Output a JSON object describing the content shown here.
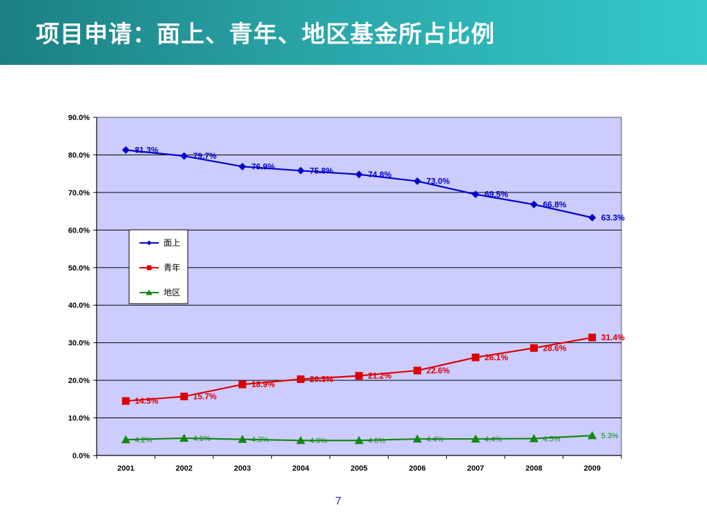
{
  "slide": {
    "title": "项目申请：面上、青年、地区基金所占比例",
    "page_number": "7"
  },
  "chart_data": {
    "type": "line",
    "title": "",
    "xlabel": "",
    "ylabel": "",
    "categories": [
      "2001",
      "2002",
      "2003",
      "2004",
      "2005",
      "2006",
      "2007",
      "2008",
      "2009"
    ],
    "ylim": [
      0,
      90
    ],
    "yticks": [
      "0.0%",
      "10.0%",
      "20.0%",
      "30.0%",
      "40.0%",
      "50.0%",
      "60.0%",
      "70.0%",
      "80.0%",
      "90.0%"
    ],
    "grid": true,
    "legend_position": "left",
    "plot_background": "#ccccff",
    "series": [
      {
        "name": "面上",
        "color": "#0000cc",
        "marker": "diamond",
        "values": [
          81.3,
          79.7,
          76.9,
          75.8,
          74.8,
          73.0,
          69.5,
          66.8,
          63.3
        ],
        "labels": [
          "81.3%",
          "79.7%",
          "76.9%",
          "75.8%",
          "74.8%",
          "73.0%",
          "69.5%",
          "66.8%",
          "63.3%"
        ]
      },
      {
        "name": "青年",
        "color": "#dd0000",
        "marker": "square",
        "values": [
          14.5,
          15.7,
          18.9,
          20.3,
          21.2,
          22.6,
          26.1,
          28.6,
          31.4
        ],
        "labels": [
          "14.5%",
          "15.7%",
          "18.9%",
          "20.3%",
          "21.2%",
          "22.6%",
          "26.1%",
          "28.6%",
          "31.4%"
        ]
      },
      {
        "name": "地区",
        "color": "#118811",
        "marker": "triangle",
        "values": [
          4.2,
          4.6,
          4.3,
          4.0,
          4.0,
          4.4,
          4.4,
          4.5,
          5.3
        ],
        "labels": [
          "4.2%",
          "4.6%",
          "4.3%",
          "4.0%",
          "4.0%",
          "4.4%",
          "4.4%",
          "4.5%",
          "5.3%"
        ]
      }
    ]
  }
}
